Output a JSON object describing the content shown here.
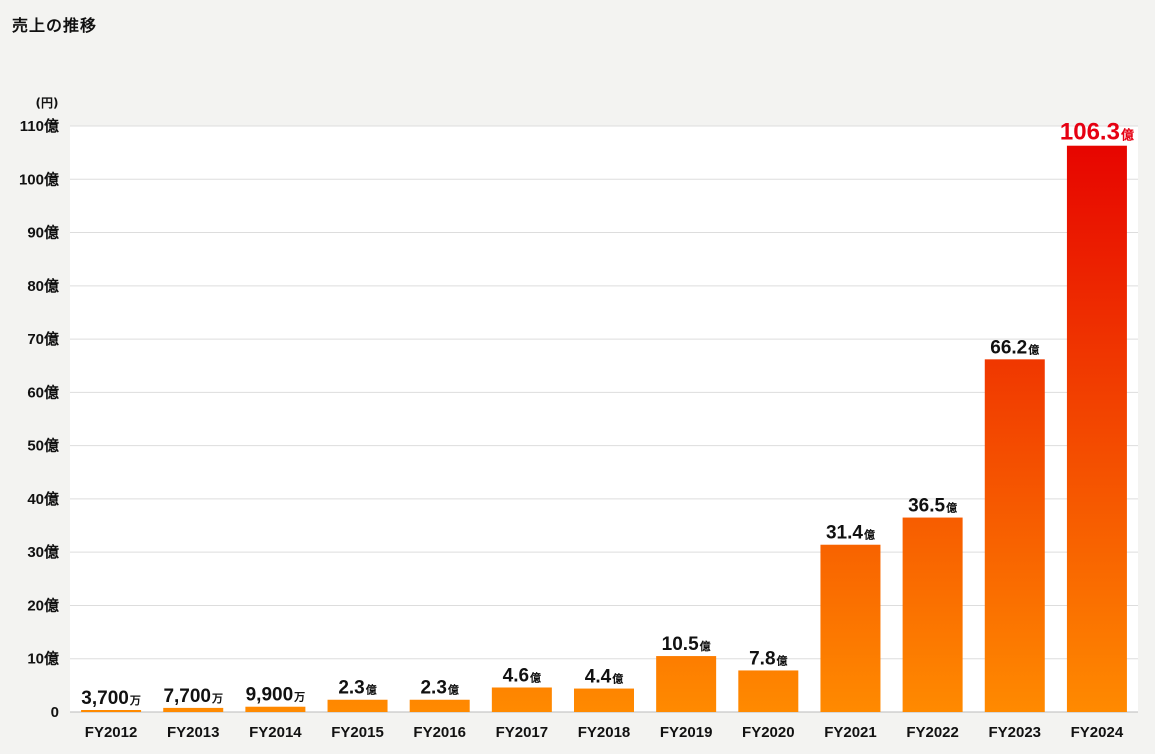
{
  "page": {
    "title": "売上の推移"
  },
  "colors": {
    "background": "#f3f3f1",
    "plot_background": "#ffffff",
    "gridline": "#dddddd",
    "text": "#111111",
    "highlight_label": "#e60012",
    "bar_gradient_low": "#ff8a00",
    "bar_gradient_high": "#e60000"
  },
  "chart_data": {
    "type": "bar",
    "title": "",
    "ylabel": "(円)",
    "xlabel": "",
    "ylim": [
      0,
      110
    ],
    "yticks": [
      0,
      10,
      20,
      30,
      40,
      50,
      60,
      70,
      80,
      90,
      100,
      110
    ],
    "ytick_labels": [
      "0",
      "10億",
      "20億",
      "30億",
      "40億",
      "50億",
      "60億",
      "70億",
      "80億",
      "90億",
      "100億",
      "110億"
    ],
    "grid": true,
    "categories": [
      "FY2012",
      "FY2013",
      "FY2014",
      "FY2015",
      "FY2016",
      "FY2017",
      "FY2018",
      "FY2019",
      "FY2020",
      "FY2021",
      "FY2022",
      "FY2023",
      "FY2024"
    ],
    "values": [
      0.37,
      0.77,
      0.99,
      2.3,
      2.3,
      4.6,
      4.4,
      10.5,
      7.8,
      31.4,
      36.5,
      66.2,
      106.3
    ],
    "data_labels": [
      {
        "number": "3,700",
        "unit": "万"
      },
      {
        "number": "7,700",
        "unit": "万"
      },
      {
        "number": "9,900",
        "unit": "万"
      },
      {
        "number": "2.3",
        "unit": "億"
      },
      {
        "number": "2.3",
        "unit": "億"
      },
      {
        "number": "4.6",
        "unit": "億"
      },
      {
        "number": "4.4",
        "unit": "億"
      },
      {
        "number": "10.5",
        "unit": "億"
      },
      {
        "number": "7.8",
        "unit": "億"
      },
      {
        "number": "31.4",
        "unit": "億"
      },
      {
        "number": "36.5",
        "unit": "億"
      },
      {
        "number": "66.2",
        "unit": "億"
      },
      {
        "number": "106.3",
        "unit": "億"
      }
    ],
    "highlight_index": 12
  }
}
